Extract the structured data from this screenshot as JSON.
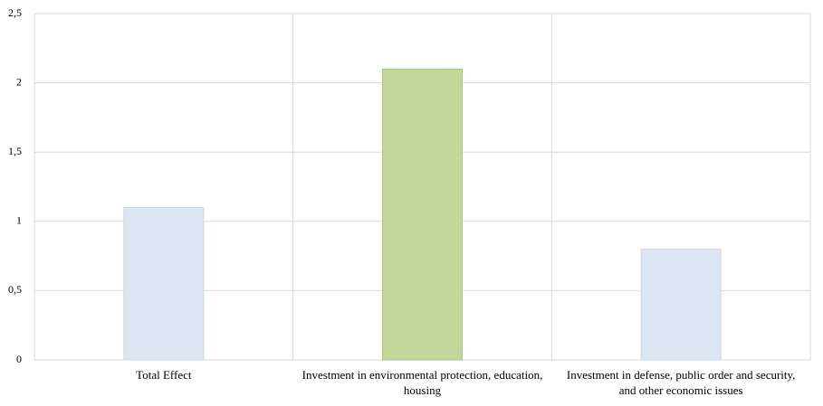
{
  "chart_data": {
    "type": "bar",
    "categories": [
      "Total Effect",
      "Investment in environmental protection, education, housing",
      "Investment in defense, public order and security, and other economic issues"
    ],
    "values": [
      1.1,
      2.1,
      0.8
    ],
    "colors": [
      "#dce6f2",
      "#c4d79b",
      "#dce6f2"
    ],
    "ylim": [
      0,
      2.5
    ],
    "yticks": [
      0,
      {
        "value": 0.5,
        "label": "0,5"
      },
      1,
      {
        "value": 1.5,
        "label": "1,5"
      },
      2,
      {
        "value": 2.5,
        "label": "2,5"
      }
    ],
    "grid": true
  }
}
